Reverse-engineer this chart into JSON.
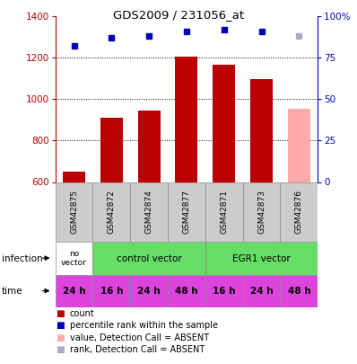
{
  "title": "GDS2009 / 231056_at",
  "samples": [
    "GSM42875",
    "GSM42872",
    "GSM42874",
    "GSM42877",
    "GSM42871",
    "GSM42873",
    "GSM42876"
  ],
  "count_values": [
    650,
    910,
    945,
    1205,
    1165,
    1095,
    955
  ],
  "count_absent": [
    false,
    false,
    false,
    false,
    false,
    false,
    true
  ],
  "rank_values": [
    82,
    87,
    88,
    91,
    92,
    91,
    88
  ],
  "rank_absent": [
    false,
    false,
    false,
    false,
    false,
    false,
    true
  ],
  "ylim_left": [
    600,
    1400
  ],
  "ylim_right": [
    0,
    100
  ],
  "yticks_left": [
    600,
    800,
    1000,
    1200,
    1400
  ],
  "yticks_right": [
    0,
    25,
    50,
    75,
    100
  ],
  "time_labels": [
    "24 h",
    "16 h",
    "24 h",
    "48 h",
    "16 h",
    "24 h",
    "48 h"
  ],
  "time_color": "#dd44dd",
  "bar_color_present": "#bb0000",
  "bar_color_absent": "#ffaaaa",
  "rank_color_present": "#0000bb",
  "rank_color_absent": "#aaaacc",
  "sample_bg_color": "#cccccc",
  "infection_no_vector_color": "#ffffff",
  "infection_vector_color": "#66dd66",
  "legend_items": [
    {
      "color": "#bb0000",
      "label": "count"
    },
    {
      "color": "#0000bb",
      "label": "percentile rank within the sample"
    },
    {
      "color": "#ffaaaa",
      "label": "value, Detection Call = ABSENT"
    },
    {
      "color": "#aaaacc",
      "label": "rank, Detection Call = ABSENT"
    }
  ]
}
